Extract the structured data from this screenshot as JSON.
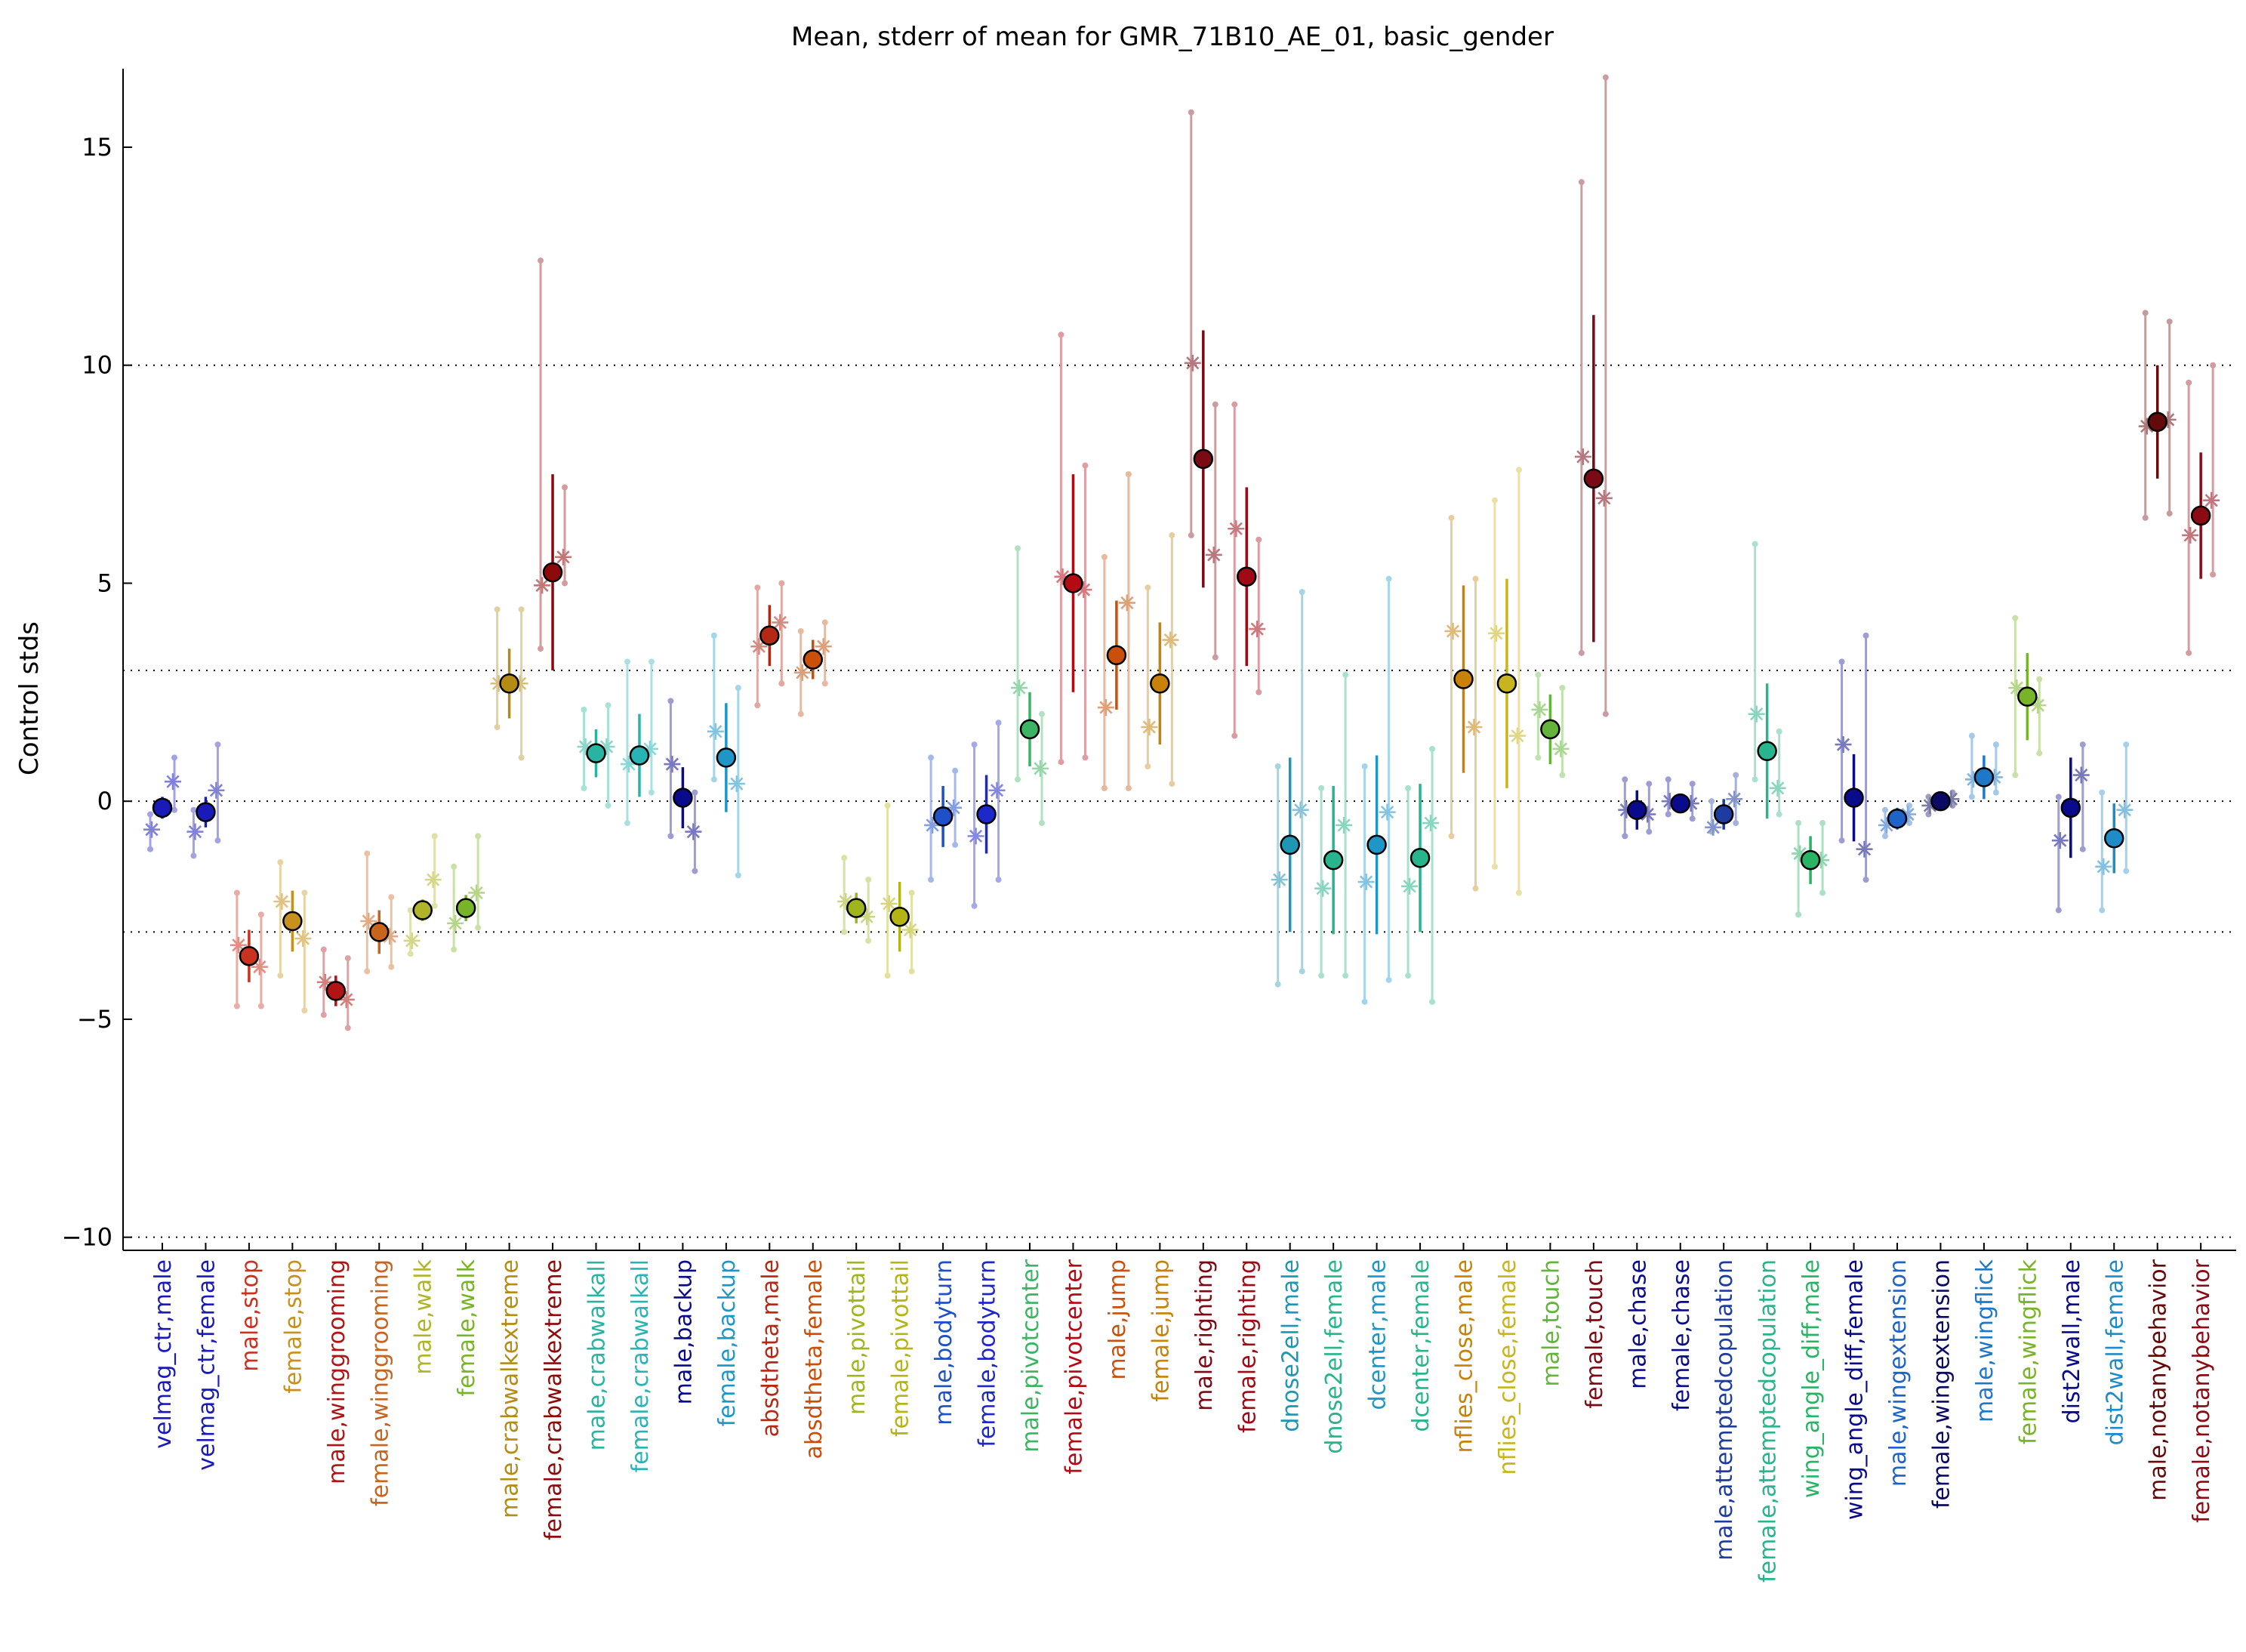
{
  "chart_data": {
    "type": "scatter",
    "title": "Mean, stderr of mean for GMR_71B10_AE_01, basic_gender",
    "xlabel": "",
    "ylabel": "Control stds",
    "ylim": [
      -10.3,
      16.8
    ],
    "yticks": [
      -10,
      -5,
      0,
      5,
      10,
      15
    ],
    "ref_lines": [
      -10,
      -3,
      0,
      3,
      10
    ],
    "grid": false,
    "legend": "none",
    "categories": [
      "velmag_ctr,male",
      "velmag_ctr,female",
      "male,stop",
      "female,stop",
      "male,winggrooming",
      "female,winggrooming",
      "male,walk",
      "female,walk",
      "male,crabwalkextreme",
      "female,crabwalkextreme",
      "male,crabwalkall",
      "female,crabwalkall",
      "male,backup",
      "female,backup",
      "absdtheta,male",
      "absdtheta,female",
      "male,pivottail",
      "female,pivottail",
      "male,bodyturn",
      "female,bodyturn",
      "male,pivotcenter",
      "female,pivotcenter",
      "male,jump",
      "female,jump",
      "male,righting",
      "female,righting",
      "dnose2ell,male",
      "dnose2ell,female",
      "dcenter,male",
      "dcenter,female",
      "nflies_close,male",
      "nflies_close,female",
      "male,touch",
      "female,touch",
      "male,chase",
      "female,chase",
      "male,attemptedcopulation",
      "female,attemptedcopulation",
      "wing_angle_diff,male",
      "wing_angle_diff,female",
      "male,wingextension",
      "female,wingextension",
      "male,wingflick",
      "female,wingflick",
      "dist2wall,male",
      "dist2wall,female",
      "male,notanybehavior",
      "female,notanybehavior"
    ],
    "colors": [
      "#1a1ab8",
      "#1a1ab8",
      "#c8321e",
      "#c8901e",
      "#b01414",
      "#c8641e",
      "#b0b428",
      "#78b428",
      "#b48c14",
      "#8c0a0a",
      "#28b4a0",
      "#28b4b4",
      "#0a0a8c",
      "#1e96c8",
      "#b42814",
      "#c8500a",
      "#a0b41e",
      "#b4b414",
      "#1e50c8",
      "#1e28c8",
      "#3cb464",
      "#b40a14",
      "#c8500a",
      "#c8820a",
      "#7a0a14",
      "#a00a14",
      "#1e96b4",
      "#28b48c",
      "#1e96c8",
      "#28b48c",
      "#c8820a",
      "#c8b41e",
      "#64b43c",
      "#7a0a14",
      "#0a0a8c",
      "#0a0a8c",
      "#1e3ca0",
      "#28b48c",
      "#28b464",
      "#0a0a8c",
      "#1e64c8",
      "#0a0a64",
      "#1e78c8",
      "#78b428",
      "#0a0a8c",
      "#1e8cc8",
      "#640a0a",
      "#8c0a14"
    ],
    "series": [
      {
        "marker": "mean (circle) with stderr bar",
        "values": [
          -0.15,
          -0.25,
          -3.55,
          -2.75,
          -4.35,
          -3.0,
          -2.5,
          -2.45,
          2.7,
          5.25,
          1.1,
          1.05,
          0.08,
          1.0,
          3.8,
          3.25,
          -2.45,
          -2.65,
          -0.35,
          -0.3,
          1.65,
          5.0,
          3.35,
          2.7,
          7.85,
          5.15,
          -1.0,
          -1.35,
          -1.0,
          -1.3,
          2.8,
          2.7,
          1.65,
          7.4,
          -0.2,
          -0.05,
          -0.3,
          1.15,
          -1.35,
          0.08,
          -0.4,
          0.0,
          0.55,
          2.4,
          -0.15,
          -0.85,
          8.7,
          6.55
        ],
        "stderr": [
          0.25,
          0.35,
          0.6,
          0.7,
          0.35,
          0.5,
          0.25,
          0.3,
          0.8,
          2.25,
          0.55,
          0.95,
          0.7,
          1.25,
          0.7,
          0.45,
          0.35,
          0.8,
          0.7,
          0.9,
          0.85,
          2.5,
          1.25,
          1.4,
          2.95,
          2.05,
          2.0,
          1.7,
          2.05,
          1.7,
          2.15,
          2.4,
          0.8,
          3.75,
          0.45,
          0.2,
          0.35,
          1.55,
          0.55,
          1.0,
          0.25,
          0.15,
          0.5,
          1.0,
          1.15,
          0.8,
          1.3,
          1.45
        ]
      },
      {
        "marker": "group A (asterisk)",
        "values": [
          -0.65,
          -0.7,
          -3.3,
          -2.3,
          -4.15,
          -2.75,
          -3.2,
          -2.8,
          2.7,
          4.95,
          1.25,
          0.85,
          0.85,
          1.6,
          3.55,
          2.95,
          -2.3,
          -2.35,
          -0.55,
          -0.8,
          2.6,
          5.15,
          2.15,
          1.7,
          10.05,
          6.25,
          -1.8,
          -2.0,
          -1.85,
          -1.95,
          3.9,
          3.85,
          2.1,
          7.9,
          -0.2,
          0.0,
          -0.6,
          2.0,
          -1.2,
          1.3,
          -0.55,
          -0.1,
          0.5,
          2.6,
          -0.9,
          -1.5,
          8.6,
          6.1
        ],
        "lower": [
          -1.1,
          -1.25,
          -4.7,
          -4.0,
          -4.9,
          -3.9,
          -3.5,
          -3.4,
          1.7,
          3.5,
          0.3,
          -0.5,
          -0.8,
          0.5,
          2.2,
          2.0,
          -3.0,
          -4.0,
          -1.8,
          -2.4,
          0.5,
          0.9,
          0.3,
          0.8,
          6.1,
          1.5,
          -4.2,
          -4.0,
          -4.6,
          -4.0,
          -0.8,
          -1.5,
          1.0,
          3.4,
          -0.8,
          -0.3,
          -0.7,
          0.5,
          -2.6,
          -0.9,
          -0.8,
          -0.3,
          0.1,
          0.6,
          -2.5,
          -2.5,
          6.5,
          3.4
        ],
        "upper": [
          -0.3,
          -0.2,
          -2.1,
          -1.4,
          -3.4,
          -1.2,
          -2.5,
          -1.5,
          4.4,
          12.4,
          2.1,
          3.2,
          2.3,
          3.8,
          4.9,
          3.9,
          -1.3,
          -0.1,
          1.0,
          1.3,
          5.8,
          10.7,
          5.6,
          4.9,
          15.8,
          9.1,
          0.8,
          0.3,
          0.8,
          0.3,
          6.5,
          6.9,
          2.9,
          14.2,
          0.5,
          0.5,
          0.0,
          5.9,
          -0.5,
          3.2,
          -0.2,
          0.1,
          1.5,
          4.2,
          0.1,
          0.2,
          11.2,
          9.6
        ]
      },
      {
        "marker": "group B (asterisk)",
        "values": [
          0.45,
          0.25,
          -3.8,
          -3.15,
          -4.55,
          -3.1,
          -1.8,
          -2.1,
          2.7,
          5.6,
          1.25,
          1.2,
          -0.7,
          0.4,
          4.1,
          3.55,
          -2.65,
          -2.95,
          -0.15,
          0.25,
          0.75,
          4.85,
          4.55,
          3.7,
          5.65,
          3.95,
          -0.2,
          -0.55,
          -0.25,
          -0.5,
          1.7,
          1.5,
          1.2,
          6.95,
          -0.3,
          -0.05,
          0.05,
          0.3,
          -1.35,
          -1.1,
          -0.3,
          0.05,
          0.55,
          2.2,
          0.6,
          -0.2,
          8.75,
          6.9
        ],
        "lower": [
          -0.2,
          -0.9,
          -4.7,
          -4.8,
          -5.2,
          -3.8,
          -2.4,
          -2.9,
          1.0,
          5.0,
          -0.1,
          0.2,
          -1.6,
          -1.7,
          2.7,
          2.7,
          -3.2,
          -3.9,
          -1.0,
          -1.8,
          -0.5,
          1.0,
          0.3,
          0.4,
          3.3,
          2.5,
          -3.9,
          -4.0,
          -4.1,
          -4.6,
          -2.0,
          -2.1,
          0.6,
          2.0,
          -0.7,
          -0.4,
          -0.5,
          -0.3,
          -2.1,
          -1.8,
          -0.5,
          -0.1,
          0.2,
          1.1,
          -1.1,
          -1.6,
          6.6,
          5.2
        ],
        "upper": [
          1.0,
          1.3,
          -2.6,
          -2.1,
          -3.6,
          -2.2,
          -0.8,
          -0.8,
          4.4,
          7.2,
          2.2,
          3.2,
          0.2,
          2.6,
          5.0,
          4.1,
          -1.8,
          -2.1,
          0.7,
          1.8,
          2.0,
          7.7,
          7.5,
          6.1,
          9.1,
          6.0,
          4.8,
          2.9,
          5.1,
          1.2,
          5.1,
          7.6,
          2.6,
          16.6,
          0.4,
          0.4,
          0.6,
          1.6,
          -0.5,
          3.8,
          -0.1,
          0.2,
          1.3,
          2.8,
          1.3,
          1.3,
          11.0,
          10.0
        ]
      }
    ]
  }
}
